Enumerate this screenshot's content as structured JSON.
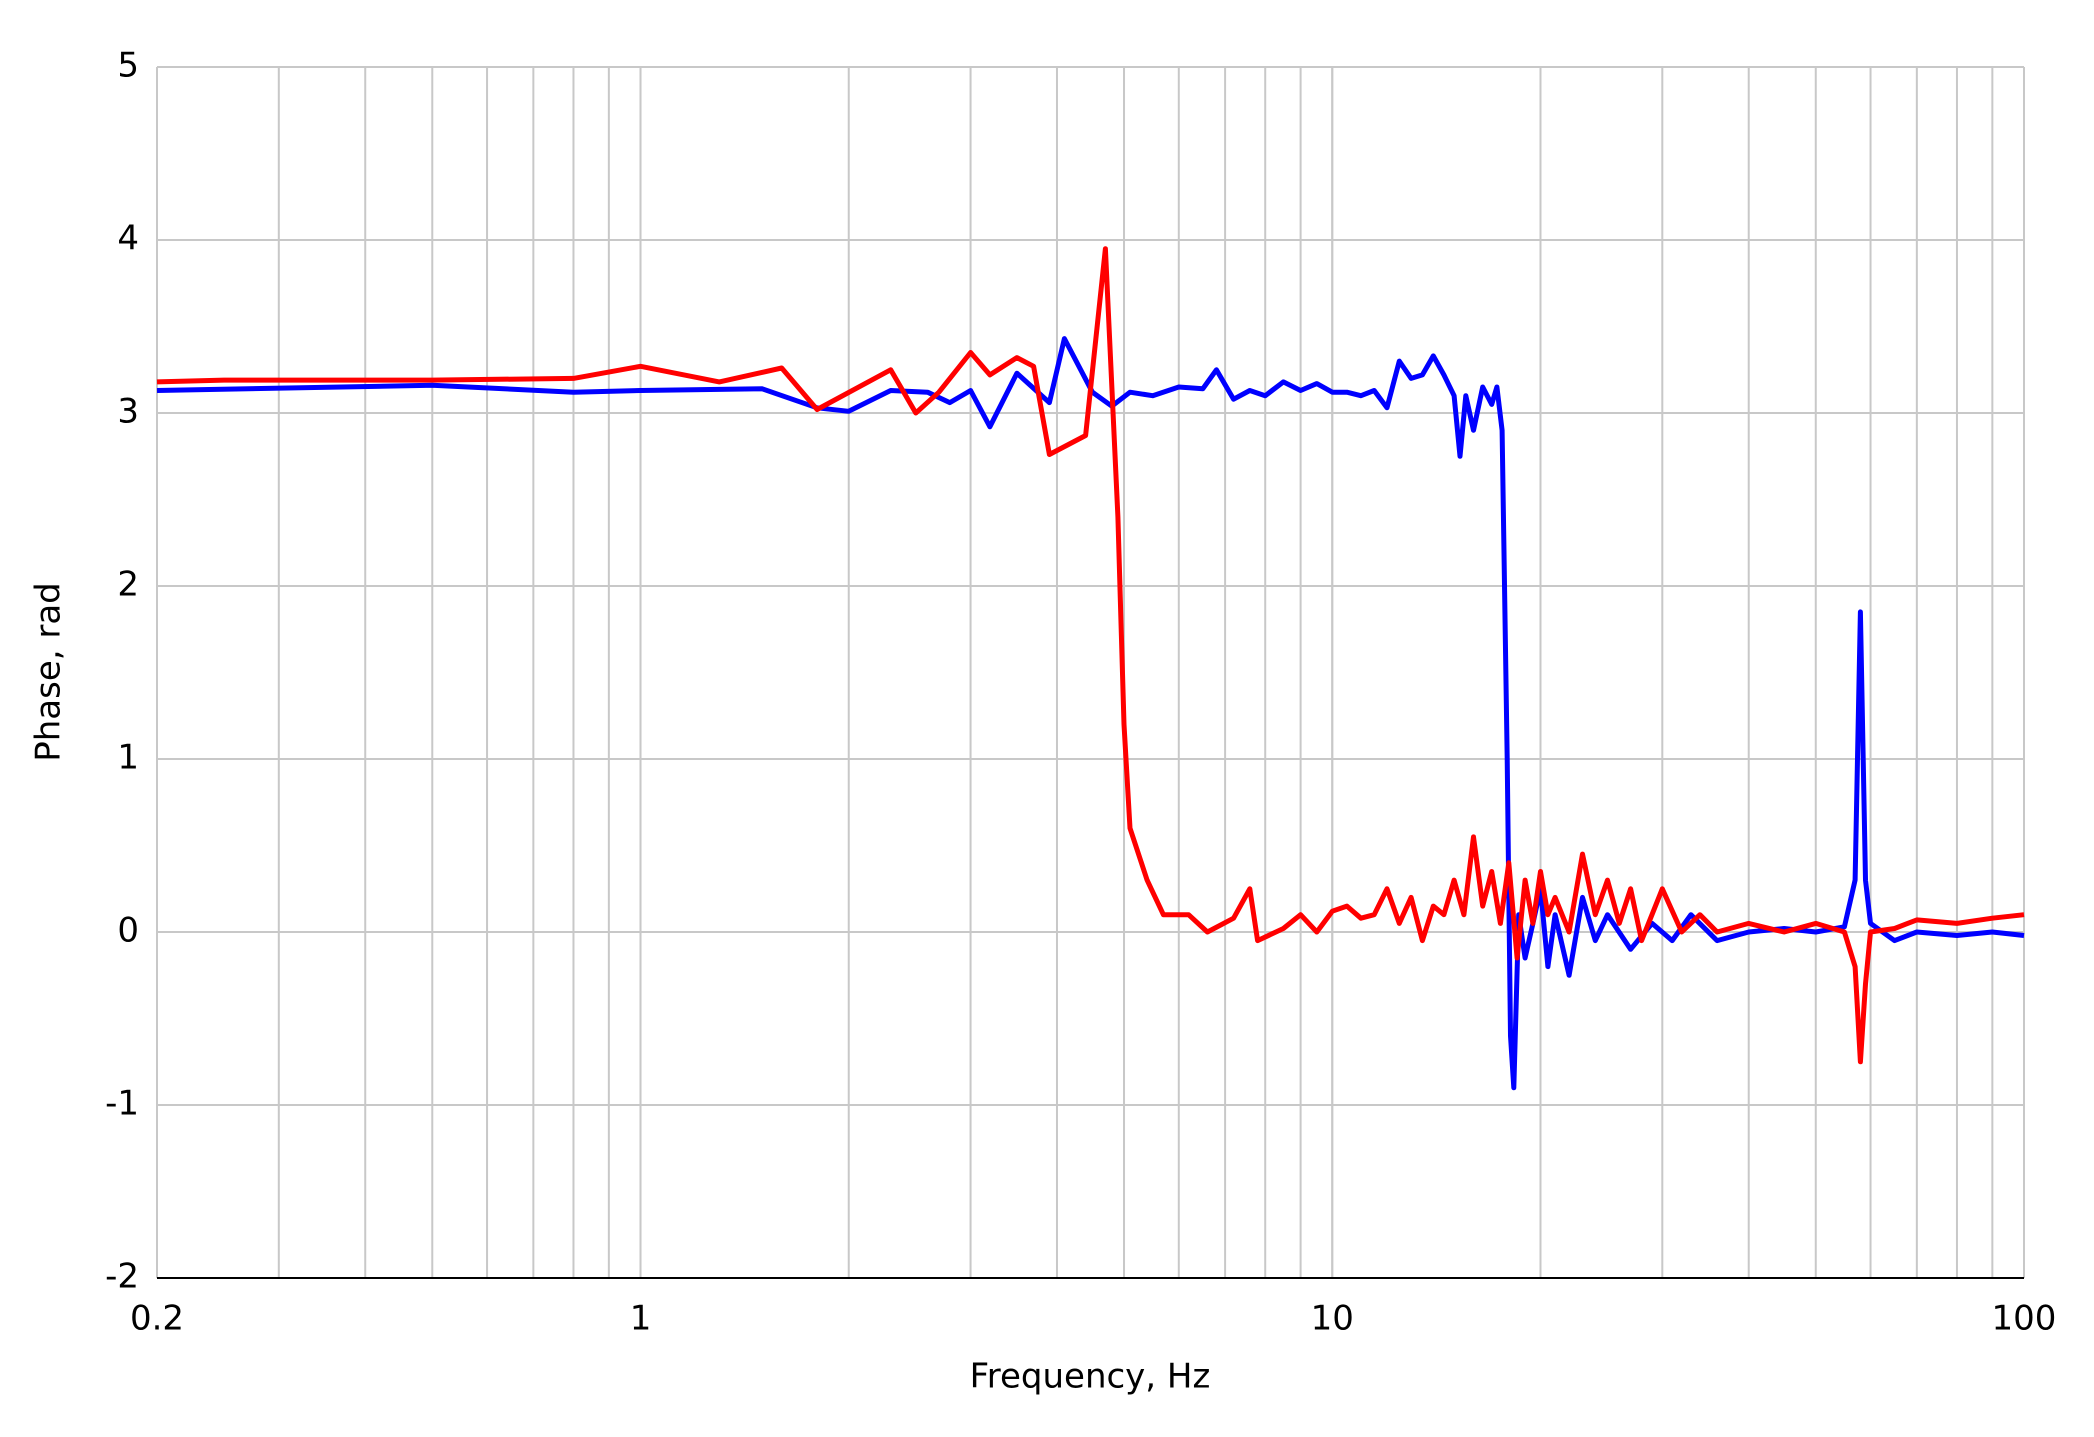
{
  "chart_data": {
    "type": "line",
    "xlabel": "Frequency, Hz",
    "ylabel": "Phase, rad",
    "xlim": [
      0.2,
      100
    ],
    "xticks": [
      0.2,
      1,
      10,
      100
    ],
    "xscale": "log",
    "ylim": [
      -2,
      5
    ],
    "yticks": [
      -2,
      -1,
      0,
      1,
      2,
      3,
      4,
      5
    ],
    "grid": true,
    "minor_grid": true,
    "series": [
      {
        "color": "#0000ff",
        "x": [
          0.2,
          0.5,
          0.8,
          1,
          1.5,
          1.8,
          2,
          2.3,
          2.6,
          2.8,
          3,
          3.2,
          3.5,
          3.9,
          4.1,
          4.5,
          4.8,
          5.1,
          5.5,
          6,
          6.5,
          6.8,
          7.2,
          7.6,
          8,
          8.5,
          9,
          9.5,
          10,
          10.5,
          11,
          11.5,
          12,
          12.5,
          13,
          13.5,
          14,
          14.5,
          15,
          15.3,
          15.6,
          16,
          16.5,
          17,
          17.3,
          17.6,
          17.9,
          18.1,
          18.3,
          18.6,
          19,
          19.5,
          20,
          20.5,
          21,
          22,
          23,
          24,
          25,
          27,
          29,
          31,
          33,
          36,
          40,
          45,
          50,
          55,
          57,
          58,
          59,
          60,
          65,
          70,
          80,
          90,
          100
        ],
        "values": [
          3.13,
          3.16,
          3.12,
          3.13,
          3.14,
          3.03,
          3.01,
          3.13,
          3.12,
          3.06,
          3.13,
          2.92,
          3.23,
          3.06,
          3.43,
          3.12,
          3.04,
          3.12,
          3.1,
          3.15,
          3.14,
          3.25,
          3.08,
          3.13,
          3.1,
          3.18,
          3.13,
          3.17,
          3.12,
          3.12,
          3.1,
          3.13,
          3.03,
          3.3,
          3.2,
          3.22,
          3.33,
          3.22,
          3.1,
          2.75,
          3.1,
          2.9,
          3.15,
          3.05,
          3.15,
          2.9,
          1.0,
          -0.6,
          -0.9,
          0.1,
          -0.15,
          0.05,
          0.25,
          -0.2,
          0.1,
          -0.25,
          0.2,
          -0.05,
          0.1,
          -0.1,
          0.05,
          -0.05,
          0.1,
          -0.05,
          0.0,
          0.02,
          0.0,
          0.03,
          0.3,
          1.85,
          0.3,
          0.05,
          -0.05,
          0.0,
          -0.02,
          0.0,
          -0.02
        ]
      },
      {
        "color": "#ff0000",
        "x": [
          0.2,
          0.25,
          0.5,
          0.8,
          1,
          1.3,
          1.6,
          1.8,
          2.3,
          2.5,
          2.7,
          3,
          3.2,
          3.5,
          3.7,
          3.9,
          4.4,
          4.7,
          4.9,
          5.0,
          5.1,
          5.4,
          5.7,
          6.2,
          6.6,
          7.2,
          7.6,
          7.8,
          8.5,
          9,
          9.5,
          10,
          10.5,
          11,
          11.5,
          12,
          12.5,
          13,
          13.5,
          14,
          14.5,
          15,
          15.5,
          16,
          16.5,
          17,
          17.5,
          18,
          18.5,
          19,
          19.5,
          20,
          20.5,
          21,
          22,
          23,
          24,
          25,
          26,
          27,
          28,
          30,
          32,
          34,
          36,
          40,
          45,
          50,
          55,
          57,
          58,
          59,
          60,
          65,
          70,
          80,
          90,
          100
        ],
        "values": [
          3.18,
          3.19,
          3.19,
          3.2,
          3.27,
          3.18,
          3.26,
          3.02,
          3.25,
          3.0,
          3.12,
          3.35,
          3.22,
          3.32,
          3.27,
          2.76,
          2.87,
          3.95,
          2.4,
          1.2,
          0.6,
          0.3,
          0.1,
          0.1,
          0.0,
          0.08,
          0.25,
          -0.05,
          0.02,
          0.1,
          0.0,
          0.12,
          0.15,
          0.08,
          0.1,
          0.25,
          0.05,
          0.2,
          -0.05,
          0.15,
          0.1,
          0.3,
          0.1,
          0.55,
          0.15,
          0.35,
          0.05,
          0.4,
          -0.15,
          0.3,
          0.05,
          0.35,
          0.1,
          0.2,
          0.0,
          0.45,
          0.1,
          0.3,
          0.05,
          0.25,
          -0.05,
          0.25,
          0.0,
          0.1,
          0.0,
          0.05,
          0.0,
          0.05,
          0.0,
          -0.2,
          -0.75,
          -0.3,
          0.0,
          0.02,
          0.07,
          0.05,
          0.08,
          0.1
        ]
      }
    ]
  }
}
